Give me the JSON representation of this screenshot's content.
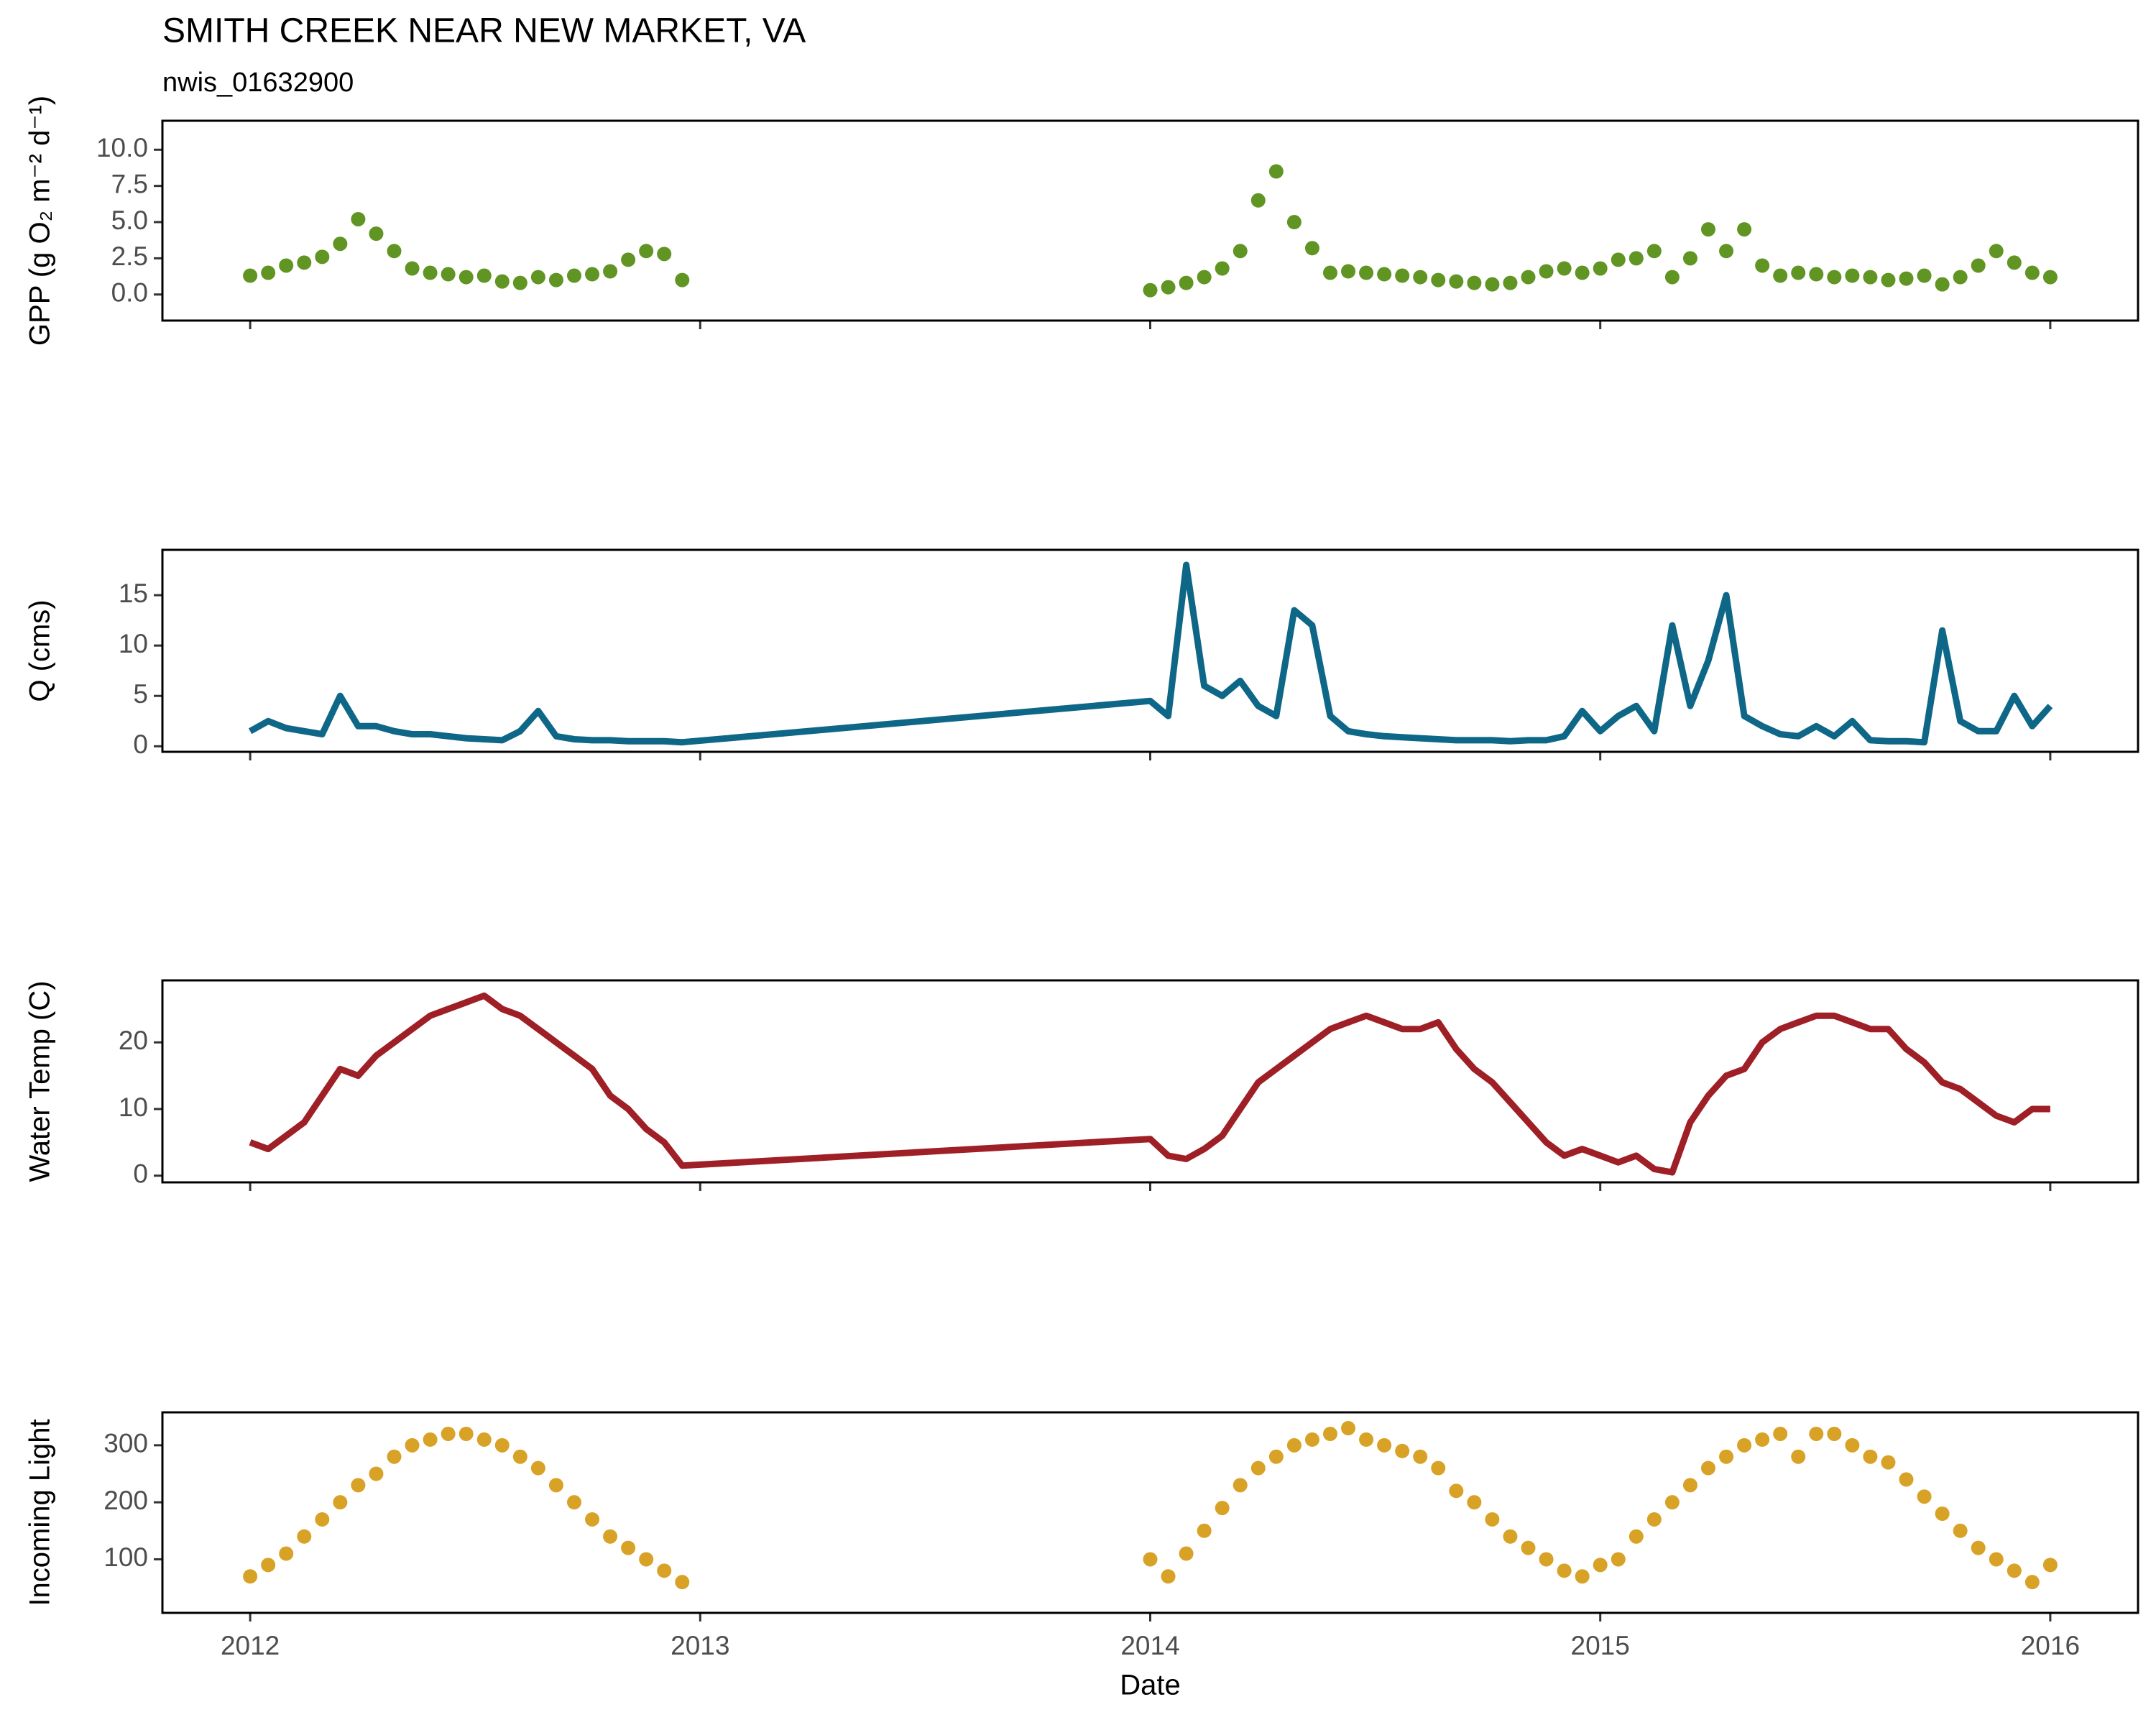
{
  "chart_data": [
    {
      "type": "scatter",
      "title": "SMITH CREEK NEAR NEW MARKET, VA",
      "subtitle": "nwis_01632900",
      "ylabel": "GPP (g  O₂ m⁻² d⁻¹)",
      "color": "#4f8a0b",
      "xlim": [
        2011.805,
        2016.195
      ],
      "ylim": [
        -1.8,
        12
      ],
      "yticks": [
        {
          "value": 0,
          "label": "0.0"
        },
        {
          "value": 2.5,
          "label": "2.5"
        },
        {
          "value": 5,
          "label": "5.0"
        },
        {
          "value": 7.5,
          "label": "7.5"
        },
        {
          "value": 10,
          "label": "10.0"
        }
      ],
      "x": [
        2012.0,
        2012.04,
        2012.08,
        2012.12,
        2012.16,
        2012.2,
        2012.24,
        2012.28,
        2012.32,
        2012.36,
        2012.4,
        2012.44,
        2012.48,
        2012.52,
        2012.56,
        2012.6,
        2012.64,
        2012.68,
        2012.72,
        2012.76,
        2012.8,
        2012.84,
        2012.88,
        2012.92,
        2012.96,
        2014.0,
        2014.04,
        2014.08,
        2014.12,
        2014.16,
        2014.2,
        2014.24,
        2014.28,
        2014.32,
        2014.36,
        2014.4,
        2014.44,
        2014.48,
        2014.52,
        2014.56,
        2014.6,
        2014.64,
        2014.68,
        2014.72,
        2014.76,
        2014.8,
        2014.84,
        2014.88,
        2014.92,
        2014.96,
        2015.0,
        2015.04,
        2015.08,
        2015.12,
        2015.16,
        2015.2,
        2015.24,
        2015.28,
        2015.32,
        2015.36,
        2015.4,
        2015.44,
        2015.48,
        2015.52,
        2015.56,
        2015.6,
        2015.64,
        2015.68,
        2015.72,
        2015.76,
        2015.8,
        2015.84,
        2015.88,
        2015.92,
        2015.96,
        2016.0
      ],
      "values": [
        1.3,
        1.5,
        2.0,
        2.2,
        2.6,
        3.5,
        5.2,
        4.2,
        3.0,
        1.8,
        1.5,
        1.4,
        1.2,
        1.3,
        0.9,
        0.8,
        1.2,
        1.0,
        1.3,
        1.4,
        1.6,
        2.4,
        3.0,
        2.8,
        1.0,
        0.3,
        0.5,
        0.8,
        1.2,
        1.8,
        3.0,
        6.5,
        8.5,
        5.0,
        3.2,
        1.5,
        1.6,
        1.5,
        1.4,
        1.3,
        1.2,
        1.0,
        0.9,
        0.8,
        0.7,
        0.8,
        1.2,
        1.6,
        1.8,
        1.5,
        1.8,
        2.4,
        2.5,
        3.0,
        1.2,
        2.5,
        4.5,
        3.0,
        4.5,
        2.0,
        1.3,
        1.5,
        1.4,
        1.2,
        1.3,
        1.2,
        1.0,
        1.1,
        1.3,
        0.7,
        1.2,
        2.0,
        3.0,
        2.2,
        1.5,
        1.2
      ]
    },
    {
      "type": "line",
      "ylabel": "Q (cms)",
      "color": "#0e6787",
      "xlim": [
        2011.805,
        2016.195
      ],
      "ylim": [
        -0.55,
        19.5
      ],
      "yticks": [
        0,
        5,
        10,
        15
      ],
      "x": [
        2012.0,
        2012.04,
        2012.08,
        2012.12,
        2012.16,
        2012.2,
        2012.24,
        2012.28,
        2012.32,
        2012.36,
        2012.4,
        2012.44,
        2012.48,
        2012.52,
        2012.56,
        2012.6,
        2012.64,
        2012.68,
        2012.72,
        2012.76,
        2012.8,
        2012.84,
        2012.88,
        2012.92,
        2012.96,
        2014.0,
        2014.04,
        2014.08,
        2014.12,
        2014.16,
        2014.2,
        2014.24,
        2014.28,
        2014.32,
        2014.36,
        2014.4,
        2014.44,
        2014.48,
        2014.52,
        2014.56,
        2014.6,
        2014.64,
        2014.68,
        2014.72,
        2014.76,
        2014.8,
        2014.84,
        2014.88,
        2014.92,
        2014.96,
        2015.0,
        2015.04,
        2015.08,
        2015.12,
        2015.16,
        2015.2,
        2015.24,
        2015.28,
        2015.32,
        2015.36,
        2015.4,
        2015.44,
        2015.48,
        2015.52,
        2015.56,
        2015.6,
        2015.64,
        2015.68,
        2015.72,
        2015.76,
        2015.8,
        2015.84,
        2015.88,
        2015.92,
        2015.96,
        2016.0
      ],
      "values": [
        1.5,
        2.5,
        1.8,
        1.5,
        1.2,
        5.0,
        2.0,
        2.0,
        1.5,
        1.2,
        1.2,
        1.0,
        0.8,
        0.7,
        0.6,
        1.5,
        3.5,
        1.0,
        0.7,
        0.6,
        0.6,
        0.5,
        0.5,
        0.5,
        0.4,
        4.5,
        3.0,
        18.0,
        6.0,
        5.0,
        6.5,
        4.0,
        3.0,
        13.5,
        12.0,
        3.0,
        1.5,
        1.2,
        1.0,
        0.9,
        0.8,
        0.7,
        0.6,
        0.6,
        0.6,
        0.5,
        0.6,
        0.6,
        1.0,
        3.5,
        1.5,
        3.0,
        4.0,
        1.5,
        12.0,
        4.0,
        8.5,
        15.0,
        3.0,
        2.0,
        1.2,
        1.0,
        2.0,
        1.0,
        2.5,
        0.6,
        0.5,
        0.5,
        0.4,
        11.5,
        2.5,
        1.5,
        1.5,
        5.0,
        2.0,
        4.0
      ]
    },
    {
      "type": "line",
      "ylabel": "Water Temp (C)",
      "color": "#9e1f26",
      "xlim": [
        2011.805,
        2016.195
      ],
      "ylim": [
        -1.0,
        29.3
      ],
      "yticks": [
        0,
        10,
        20
      ],
      "x": [
        2012.0,
        2012.04,
        2012.08,
        2012.12,
        2012.16,
        2012.2,
        2012.24,
        2012.28,
        2012.32,
        2012.36,
        2012.4,
        2012.44,
        2012.48,
        2012.52,
        2012.56,
        2012.6,
        2012.64,
        2012.68,
        2012.72,
        2012.76,
        2012.8,
        2012.84,
        2012.88,
        2012.92,
        2012.96,
        2014.0,
        2014.04,
        2014.08,
        2014.12,
        2014.16,
        2014.2,
        2014.24,
        2014.28,
        2014.32,
        2014.36,
        2014.4,
        2014.44,
        2014.48,
        2014.52,
        2014.56,
        2014.6,
        2014.64,
        2014.68,
        2014.72,
        2014.76,
        2014.8,
        2014.84,
        2014.88,
        2014.92,
        2014.96,
        2015.0,
        2015.04,
        2015.08,
        2015.12,
        2015.16,
        2015.2,
        2015.24,
        2015.28,
        2015.32,
        2015.36,
        2015.4,
        2015.44,
        2015.48,
        2015.52,
        2015.56,
        2015.6,
        2015.64,
        2015.68,
        2015.72,
        2015.76,
        2015.8,
        2015.84,
        2015.88,
        2015.92,
        2015.96,
        2016.0
      ],
      "values": [
        5,
        4,
        6,
        8,
        12,
        16,
        15,
        18,
        20,
        22,
        24,
        25,
        26,
        27,
        25,
        24,
        22,
        20,
        18,
        16,
        12,
        10,
        7,
        5,
        1.5,
        5.5,
        3,
        2.5,
        4,
        6,
        10,
        14,
        16,
        18,
        20,
        22,
        23,
        24,
        23,
        22,
        22,
        23,
        19,
        16,
        14,
        11,
        8,
        5,
        3,
        4,
        3,
        2,
        3,
        1,
        0.5,
        8,
        12,
        15,
        16,
        20,
        22,
        23,
        24,
        24,
        23,
        22,
        22,
        19,
        17,
        14,
        13,
        11,
        9,
        8,
        10,
        10
      ]
    },
    {
      "type": "scatter",
      "ylabel": "Incoming Light",
      "xlabel": "Date",
      "color": "#d4980f",
      "xlim": [
        2011.805,
        2016.195
      ],
      "ylim": [
        6,
        357.8
      ],
      "yticks": [
        100,
        200,
        300
      ],
      "xticks": [
        2012,
        2013,
        2014,
        2015,
        2016
      ],
      "x": [
        2012.0,
        2012.04,
        2012.08,
        2012.12,
        2012.16,
        2012.2,
        2012.24,
        2012.28,
        2012.32,
        2012.36,
        2012.4,
        2012.44,
        2012.48,
        2012.52,
        2012.56,
        2012.6,
        2012.64,
        2012.68,
        2012.72,
        2012.76,
        2012.8,
        2012.84,
        2012.88,
        2012.92,
        2012.96,
        2014.0,
        2014.04,
        2014.08,
        2014.12,
        2014.16,
        2014.2,
        2014.24,
        2014.28,
        2014.32,
        2014.36,
        2014.4,
        2014.44,
        2014.48,
        2014.52,
        2014.56,
        2014.6,
        2014.64,
        2014.68,
        2014.72,
        2014.76,
        2014.8,
        2014.84,
        2014.88,
        2014.92,
        2014.96,
        2015.0,
        2015.04,
        2015.08,
        2015.12,
        2015.16,
        2015.2,
        2015.24,
        2015.28,
        2015.32,
        2015.36,
        2015.4,
        2015.44,
        2015.48,
        2015.52,
        2015.56,
        2015.6,
        2015.64,
        2015.68,
        2015.72,
        2015.76,
        2015.8,
        2015.84,
        2015.88,
        2015.92,
        2015.96,
        2016.0
      ],
      "values": [
        70,
        90,
        110,
        140,
        170,
        200,
        230,
        250,
        280,
        300,
        310,
        320,
        320,
        310,
        300,
        280,
        260,
        230,
        200,
        170,
        140,
        120,
        100,
        80,
        60,
        100,
        70,
        110,
        150,
        190,
        230,
        260,
        280,
        300,
        310,
        320,
        330,
        310,
        300,
        290,
        280,
        260,
        220,
        200,
        170,
        140,
        120,
        100,
        80,
        70,
        90,
        100,
        140,
        170,
        200,
        230,
        260,
        280,
        300,
        310,
        320,
        280,
        320,
        320,
        300,
        280,
        270,
        240,
        210,
        180,
        150,
        120,
        100,
        80,
        60,
        90
      ]
    }
  ]
}
